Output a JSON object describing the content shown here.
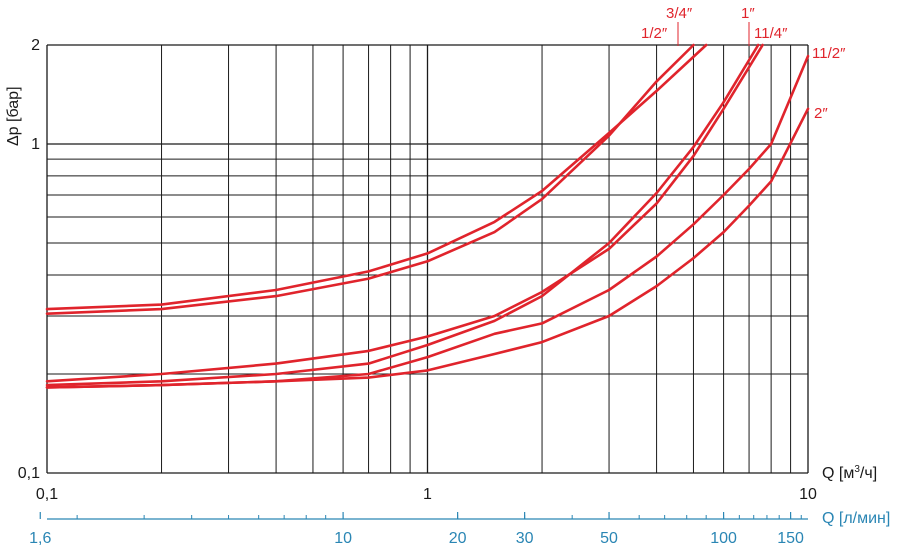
{
  "chart_data": {
    "type": "line",
    "title": "",
    "y_label": "Δp [бар]",
    "x_label_prefix": "Q [м",
    "x_label_sup": "3",
    "x_label_suffix": "/ч]",
    "x2_label": "Q [л/мин]",
    "x_scale": "log",
    "y_scale": "log",
    "xlim": [
      0.1,
      10
    ],
    "ylim": [
      0.1,
      2
    ],
    "grid": true,
    "x_ticks": [
      {
        "v": 0.1,
        "label": "0,1"
      },
      {
        "v": 1,
        "label": "1"
      },
      {
        "v": 10,
        "label": "10"
      }
    ],
    "y_ticks": [
      {
        "v": 0.1,
        "label": "0,1"
      },
      {
        "v": 1,
        "label": "1"
      },
      {
        "v": 2,
        "label": "2"
      }
    ],
    "x2_ticks": [
      {
        "v": 1.6,
        "label": "1,6"
      },
      {
        "v": 10,
        "label": "10"
      },
      {
        "v": 20,
        "label": "20"
      },
      {
        "v": 30,
        "label": "30"
      },
      {
        "v": 50,
        "label": "50"
      },
      {
        "v": 100,
        "label": "100"
      },
      {
        "v": 150,
        "label": "150"
      }
    ],
    "colors": {
      "series": "#e0242c",
      "grid": "#1a1a1a",
      "secondary_axis": "#2a86b4"
    },
    "series": [
      {
        "name": "1/2″",
        "x": [
          0.1,
          0.2,
          0.4,
          0.7,
          1.0,
          1.5,
          2.0,
          3.0,
          4.0,
          5.0
        ],
        "y": [
          0.305,
          0.315,
          0.345,
          0.39,
          0.44,
          0.54,
          0.68,
          1.06,
          1.55,
          2.0
        ]
      },
      {
        "name": "3/4″",
        "x": [
          0.1,
          0.2,
          0.4,
          0.7,
          1.0,
          1.5,
          2.0,
          3.0,
          4.0,
          5.4
        ],
        "y": [
          0.315,
          0.325,
          0.36,
          0.41,
          0.465,
          0.58,
          0.72,
          1.08,
          1.45,
          2.0
        ]
      },
      {
        "name": "1″",
        "x": [
          0.1,
          0.2,
          0.4,
          0.7,
          1.0,
          1.5,
          2.0,
          3.0,
          4.0,
          5.0,
          6.0,
          7.4
        ],
        "y": [
          0.185,
          0.19,
          0.2,
          0.215,
          0.245,
          0.29,
          0.345,
          0.5,
          0.71,
          0.98,
          1.34,
          2.0
        ]
      },
      {
        "name": "11/4″",
        "x": [
          0.1,
          0.2,
          0.4,
          0.7,
          1.0,
          1.5,
          2.0,
          3.0,
          4.0,
          5.0,
          6.0,
          7.6
        ],
        "y": [
          0.19,
          0.2,
          0.215,
          0.235,
          0.26,
          0.3,
          0.355,
          0.48,
          0.66,
          0.92,
          1.28,
          2.0
        ]
      },
      {
        "name": "11/2″",
        "x": [
          0.1,
          0.2,
          0.4,
          0.7,
          1.0,
          1.5,
          2.0,
          3.0,
          4.0,
          5.0,
          6.0,
          7.0,
          8.0,
          10.0
        ],
        "y": [
          0.182,
          0.185,
          0.19,
          0.2,
          0.225,
          0.265,
          0.285,
          0.36,
          0.455,
          0.57,
          0.7,
          0.84,
          1.0,
          1.85
        ]
      },
      {
        "name": "2″",
        "x": [
          0.1,
          0.2,
          0.4,
          0.7,
          1.0,
          1.5,
          2.0,
          3.0,
          4.0,
          5.0,
          6.0,
          7.0,
          8.0,
          10.0
        ],
        "y": [
          0.182,
          0.185,
          0.19,
          0.195,
          0.205,
          0.23,
          0.25,
          0.3,
          0.37,
          0.45,
          0.54,
          0.65,
          0.77,
          1.28
        ]
      }
    ]
  }
}
